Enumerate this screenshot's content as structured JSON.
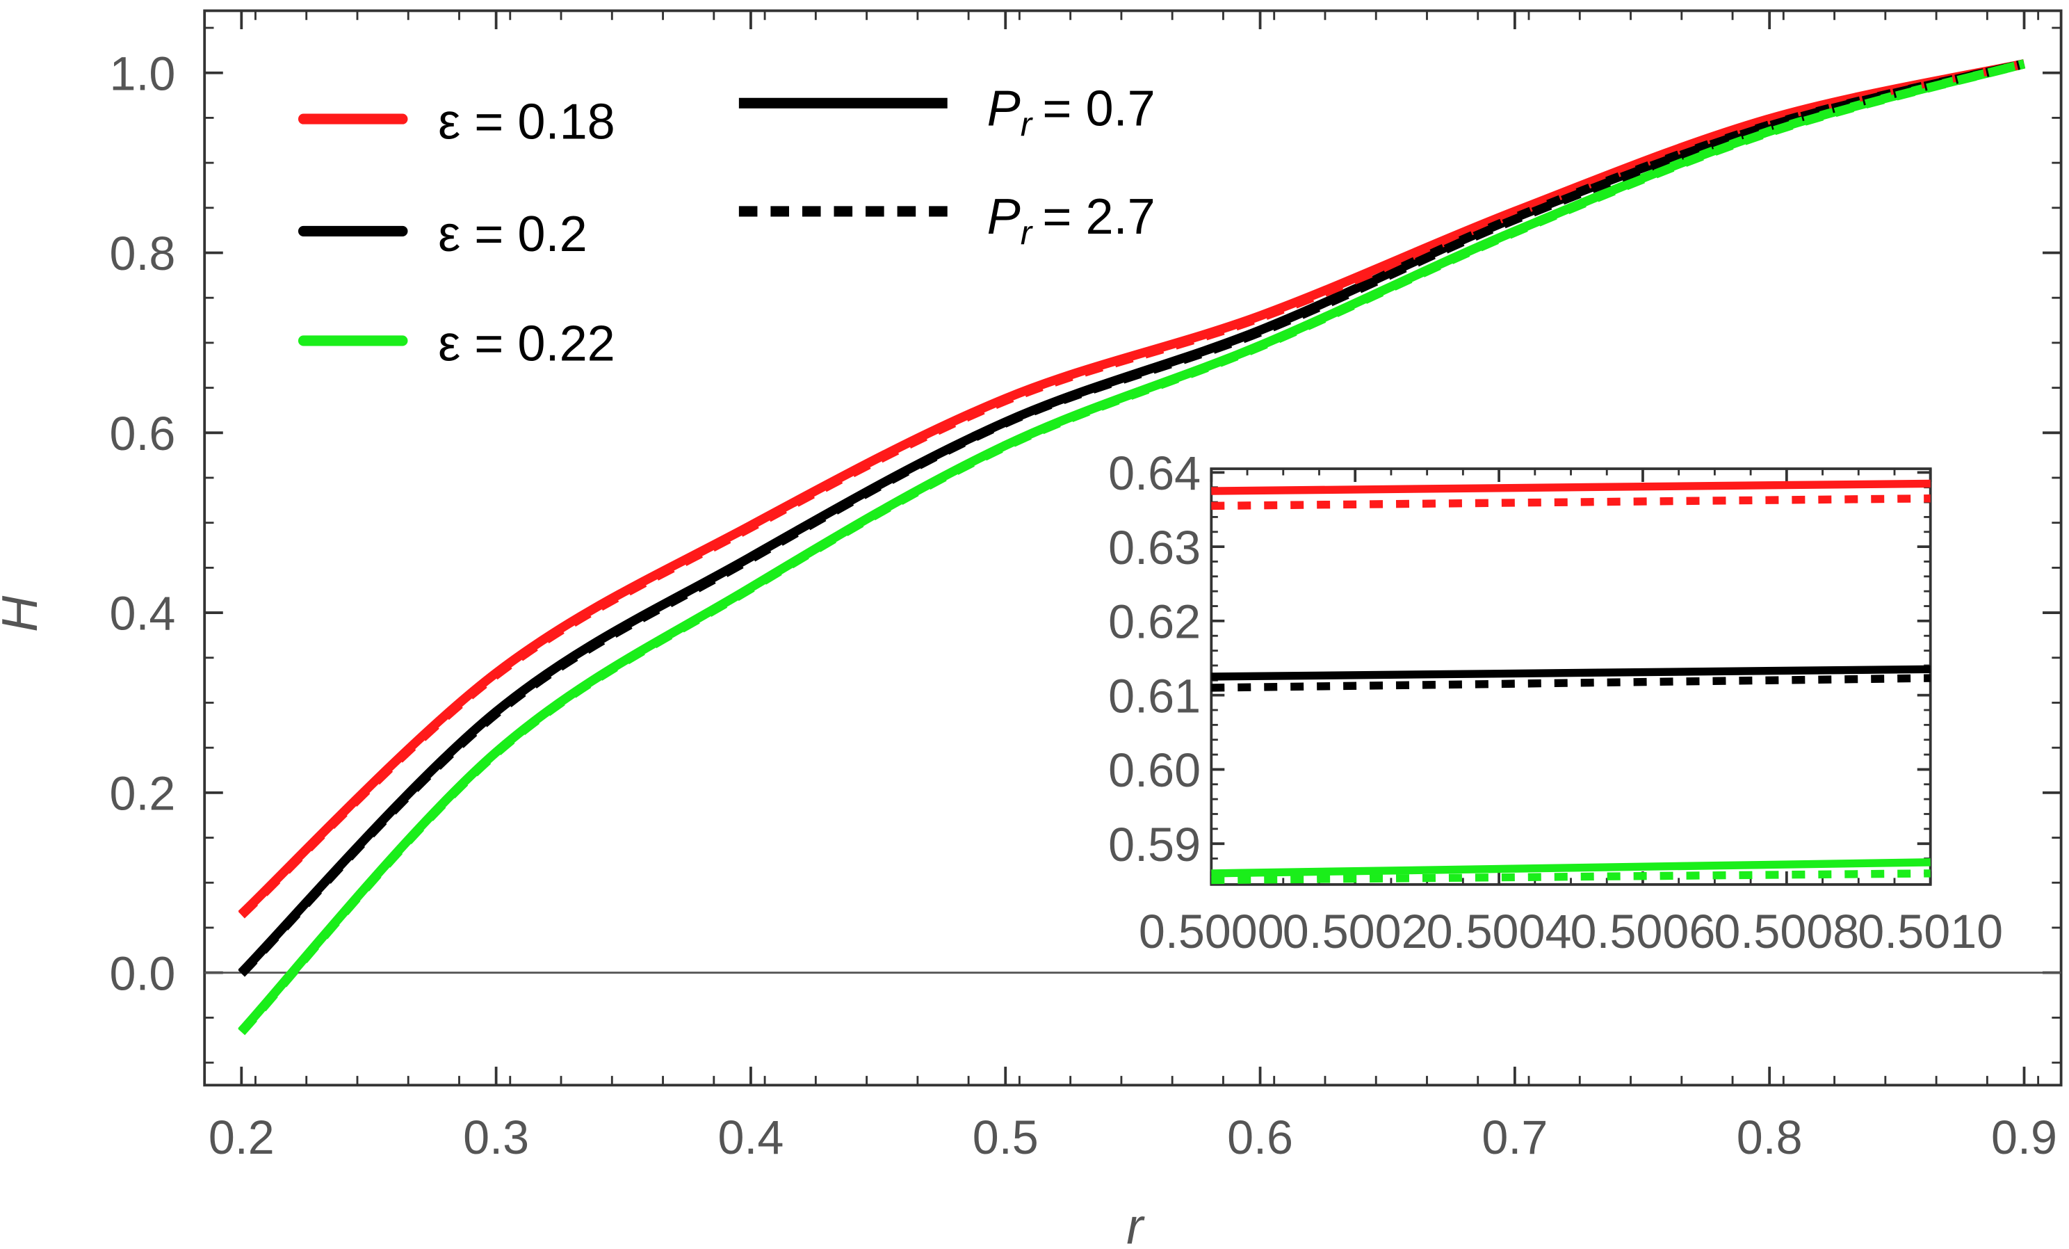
{
  "chart_data": {
    "type": "line",
    "title": "",
    "xlabel": "r",
    "ylabel": "H",
    "xlim": [
      0.1855,
      0.9145
    ],
    "ylim": [
      -0.125,
      1.069
    ],
    "xticks": [
      "0.2",
      "0.3",
      "0.4",
      "0.5",
      "0.6",
      "0.7",
      "0.8",
      "0.9"
    ],
    "yticks": [
      "0.0",
      "0.2",
      "0.4",
      "0.6",
      "0.8",
      "1.0"
    ],
    "x": [
      0.2,
      0.3,
      0.4,
      0.5,
      0.6,
      0.7,
      0.8,
      0.9
    ],
    "series": [
      {
        "name": "ε = 0.18",
        "color": "#ff1a1a",
        "style": "solid",
        "values": [
          0.065,
          0.333,
          0.497,
          0.638,
          0.73,
          0.846,
          0.949,
          1.01
        ]
      },
      {
        "name": "ε = 0.2",
        "color": "#000000",
        "style": "solid",
        "values": [
          0.0,
          0.29,
          0.462,
          0.612,
          0.714,
          0.839,
          0.942,
          1.01
        ]
      },
      {
        "name": "ε = 0.22",
        "color": "#1aee1a",
        "style": "solid",
        "values": [
          -0.065,
          0.245,
          0.428,
          0.586,
          0.697,
          0.824,
          0.935,
          1.01
        ]
      },
      {
        "name": "ε = 0.18, Pr = 2.7",
        "color": "#ff1a1a",
        "style": "dashed",
        "values": [
          0.064,
          0.331,
          0.495,
          0.636,
          0.728,
          0.844,
          0.948,
          1.01
        ]
      },
      {
        "name": "ε = 0.2, Pr = 2.7",
        "color": "#000000",
        "style": "dashed",
        "values": [
          -0.001,
          0.288,
          0.46,
          0.611,
          0.712,
          0.837,
          0.941,
          1.01
        ]
      },
      {
        "name": "ε = 0.22, Pr = 2.7",
        "color": "#1aee1a",
        "style": "dashed",
        "values": [
          -0.066,
          0.244,
          0.427,
          0.585,
          0.696,
          0.823,
          0.934,
          1.01
        ]
      }
    ],
    "legend": {
      "placement": "top-left",
      "eps_entries": [
        "ε = 0.18",
        "ε = 0.2",
        "ε = 0.22"
      ],
      "pr_entries": [
        {
          "label": "P",
          "sub": "r",
          "value": "= 0.7",
          "style": "solid"
        },
        {
          "label": "P",
          "sub": "r",
          "value": "= 2.7",
          "style": "dashed"
        }
      ]
    },
    "hline": 0,
    "inset": {
      "placement": "center-right",
      "xlim": [
        0.5,
        0.501
      ],
      "ylim": [
        0.5845,
        0.6405
      ],
      "xticks": [
        "0.5000",
        "0.5002",
        "0.5004",
        "0.5006",
        "0.5008",
        "0.5010"
      ],
      "yticks": [
        "0.59",
        "0.60",
        "0.61",
        "0.62",
        "0.63",
        "0.64"
      ],
      "x": [
        0.5,
        0.501
      ],
      "series": [
        {
          "name": "ε = 0.18, Pr = 0.7",
          "color": "#ff1a1a",
          "style": "solid",
          "values": [
            0.6375,
            0.6385
          ]
        },
        {
          "name": "ε = 0.18, Pr = 2.7",
          "color": "#ff1a1a",
          "style": "dashed",
          "values": [
            0.6355,
            0.6365
          ]
        },
        {
          "name": "ε = 0.2, Pr = 0.7",
          "color": "#000000",
          "style": "solid",
          "values": [
            0.6125,
            0.6135
          ]
        },
        {
          "name": "ε = 0.2, Pr = 2.7",
          "color": "#000000",
          "style": "dashed",
          "values": [
            0.611,
            0.6123
          ]
        },
        {
          "name": "ε = 0.22, Pr = 0.7",
          "color": "#1aee1a",
          "style": "solid",
          "values": [
            0.586,
            0.5875
          ]
        },
        {
          "name": "ε = 0.22, Pr = 2.7",
          "color": "#1aee1a",
          "style": "dashed",
          "values": [
            0.5851,
            0.586
          ]
        }
      ]
    }
  }
}
